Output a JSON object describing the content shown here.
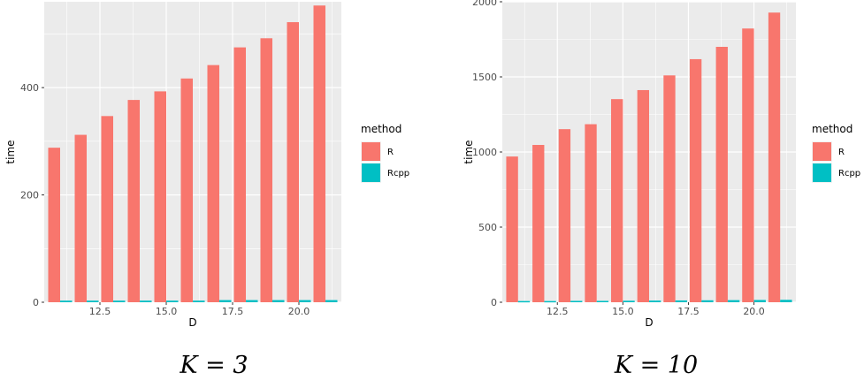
{
  "chart_data": [
    {
      "type": "bar",
      "xlabel": "D",
      "ylabel": "time",
      "caption": "K = 3",
      "ylim": [
        0,
        560
      ],
      "xlim": [
        10.4,
        21.6
      ],
      "yticks": [
        0,
        200,
        400
      ],
      "xticks": [
        12.5,
        15.0,
        17.5,
        20.0
      ],
      "xtick_labels": [
        "12.5",
        "15.0",
        "17.5",
        "20.0"
      ],
      "x": [
        11,
        12,
        13,
        14,
        15,
        16,
        17,
        18,
        19,
        20,
        21
      ],
      "legend": {
        "title": "method",
        "position": "right"
      },
      "series": [
        {
          "name": "R",
          "color": "#F8766D",
          "values": [
            288,
            312,
            347,
            377,
            393,
            417,
            442,
            475,
            492,
            522,
            553
          ]
        },
        {
          "name": "Rcpp",
          "color": "#00BFC4",
          "values": [
            3,
            3,
            3,
            3,
            3,
            3,
            4,
            4,
            4,
            4,
            4
          ]
        }
      ]
    },
    {
      "type": "bar",
      "xlabel": "D",
      "ylabel": "time",
      "caption": "K = 10",
      "ylim": [
        0,
        2000
      ],
      "xlim": [
        10.4,
        21.6
      ],
      "yticks": [
        0,
        500,
        1000,
        1500,
        2000
      ],
      "xticks": [
        12.5,
        15.0,
        17.5,
        20.0
      ],
      "xtick_labels": [
        "12.5",
        "15.0",
        "17.5",
        "20.0"
      ],
      "x": [
        11,
        12,
        13,
        14,
        15,
        16,
        17,
        18,
        19,
        20,
        21
      ],
      "legend": {
        "title": "method",
        "position": "right"
      },
      "series": [
        {
          "name": "R",
          "color": "#F8766D",
          "values": [
            970,
            1047,
            1152,
            1185,
            1352,
            1412,
            1510,
            1618,
            1700,
            1822,
            1928
          ]
        },
        {
          "name": "Rcpp",
          "color": "#00BFC4",
          "values": [
            8,
            8,
            9,
            9,
            10,
            11,
            12,
            13,
            14,
            15,
            16
          ]
        }
      ]
    }
  ]
}
